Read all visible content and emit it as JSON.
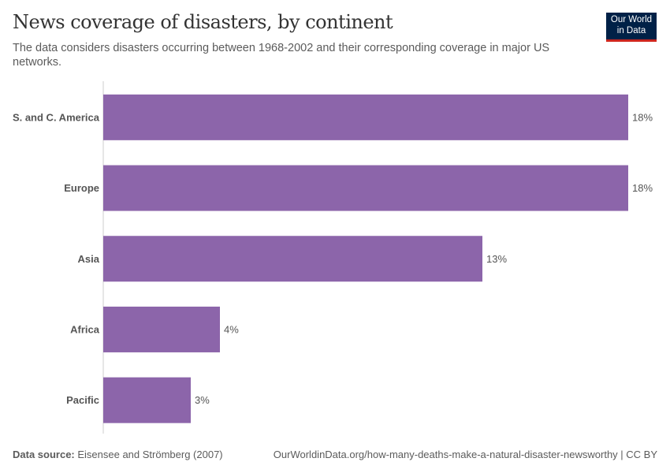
{
  "title": "News coverage of disasters, by continent",
  "subtitle": "The data considers disasters occurring between 1968-2002 and their corresponding coverage in major US networks.",
  "logo": {
    "line1": "Our World",
    "line2": "in Data",
    "bg": "#002147",
    "accent": "#ce261e"
  },
  "footer": {
    "source_label": "Data source:",
    "source": " Eisensee and Strömberg (2007)",
    "url": "OurWorldinData.org/how-many-deaths-make-a-natural-disaster-newsworthy | CC BY"
  },
  "chart_data": {
    "type": "bar",
    "orientation": "horizontal",
    "categories": [
      "S. and C. America",
      "Europe",
      "Asia",
      "Africa",
      "Pacific"
    ],
    "values": [
      18,
      18,
      13,
      4,
      3
    ],
    "labels": [
      "18%",
      "18%",
      "13%",
      "4%",
      "3%"
    ],
    "unit": "%",
    "xlim": [
      0,
      18
    ],
    "color": "#8c65aa",
    "grid": false
  }
}
